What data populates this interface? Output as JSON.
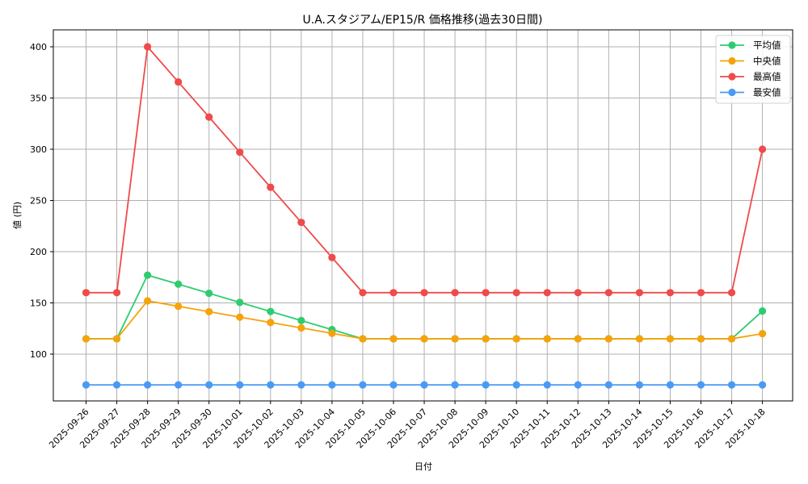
{
  "chart_data": {
    "type": "line",
    "title": "U.A.スタジアム/EP15/R 価格推移(過去30日間)",
    "xlabel": "日付",
    "ylabel": "値 (円)",
    "ylim": [
      53,
      416
    ],
    "yticks": [
      100,
      150,
      200,
      250,
      300,
      350,
      400
    ],
    "grid": true,
    "legend_position": "upper right",
    "categories": [
      "2025-09-26",
      "2025-09-27",
      "2025-09-28",
      "2025-09-29",
      "2025-09-30",
      "2025-10-01",
      "2025-10-02",
      "2025-10-03",
      "2025-10-04",
      "2025-10-05",
      "2025-10-06",
      "2025-10-07",
      "2025-10-08",
      "2025-10-09",
      "2025-10-10",
      "2025-10-11",
      "2025-10-12",
      "2025-10-13",
      "2025-10-14",
      "2025-10-15",
      "2025-10-16",
      "2025-10-17",
      "2025-10-18"
    ],
    "series": [
      {
        "name": "平均値",
        "color": "#2ecc71",
        "values": [
          115,
          115,
          177.1,
          168.3,
          159.4,
          150.5,
          141.6,
          132.8,
          123.9,
          115,
          115,
          115,
          115,
          115,
          115,
          115,
          115,
          115,
          115,
          115,
          115,
          115,
          142
        ]
      },
      {
        "name": "中央値",
        "color": "#f5a30a",
        "values": [
          115,
          115,
          152,
          146.7,
          141.4,
          136.1,
          130.9,
          125.6,
          120.3,
          115,
          115,
          115,
          115,
          115,
          115,
          115,
          115,
          115,
          115,
          115,
          115,
          115,
          120
        ]
      },
      {
        "name": "最高値",
        "color": "#f04a4a",
        "values": [
          160,
          160,
          400,
          365.7,
          331.4,
          297.1,
          262.9,
          228.6,
          194.3,
          160,
          160,
          160,
          160,
          160,
          160,
          160,
          160,
          160,
          160,
          160,
          160,
          160,
          300
        ]
      },
      {
        "name": "最安値",
        "color": "#4a9af5",
        "values": [
          70,
          70,
          70,
          70,
          70,
          70,
          70,
          70,
          70,
          70,
          70,
          70,
          70,
          70,
          70,
          70,
          70,
          70,
          70,
          70,
          70,
          70,
          70
        ]
      }
    ]
  }
}
